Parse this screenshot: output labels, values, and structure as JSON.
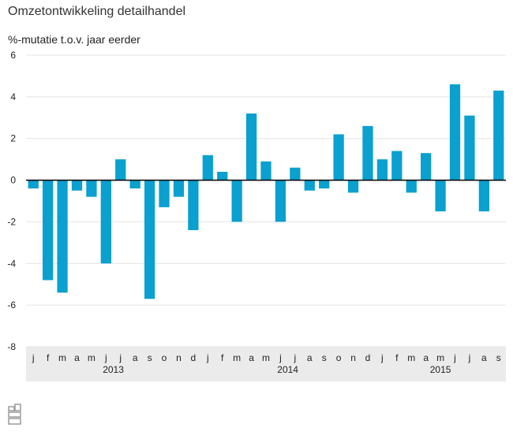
{
  "title": "Omzetontwikkeling detailhandel",
  "subtitle": "%-mutatie t.o.v. jaar eerder",
  "colors": {
    "bar": "#0aa0cf",
    "grid": "#e4e4e4",
    "zero": "#000000",
    "band": "#ebebeb"
  },
  "chart_data": {
    "type": "bar",
    "title": "Omzetontwikkeling detailhandel",
    "ylabel": "%-mutatie t.o.v. jaar eerder",
    "ylim": [
      -8,
      6
    ],
    "yticks": [
      6,
      4,
      2,
      0,
      -2,
      -4,
      -6,
      -8
    ],
    "grid": true,
    "categories": [
      "j",
      "f",
      "m",
      "a",
      "m",
      "j",
      "j",
      "a",
      "s",
      "o",
      "n",
      "d",
      "j",
      "f",
      "m",
      "a",
      "m",
      "j",
      "j",
      "a",
      "s",
      "o",
      "n",
      "d",
      "j",
      "f",
      "m",
      "a",
      "m",
      "j",
      "j",
      "a",
      "s"
    ],
    "years": [
      {
        "label": "2013",
        "start": 0,
        "end": 11
      },
      {
        "label": "2014",
        "start": 12,
        "end": 23
      },
      {
        "label": "2015",
        "start": 24,
        "end": 32
      }
    ],
    "values": [
      -0.4,
      -4.8,
      -5.4,
      -0.5,
      -0.8,
      -4.0,
      1.0,
      -0.4,
      -5.7,
      -1.3,
      -0.8,
      -2.4,
      1.2,
      0.4,
      -2.0,
      3.2,
      0.9,
      -2.0,
      0.6,
      -0.5,
      -0.4,
      2.2,
      -0.6,
      2.6,
      1.0,
      1.4,
      -0.6,
      1.3,
      -1.5,
      4.6,
      3.1,
      -1.5,
      4.3
    ]
  }
}
